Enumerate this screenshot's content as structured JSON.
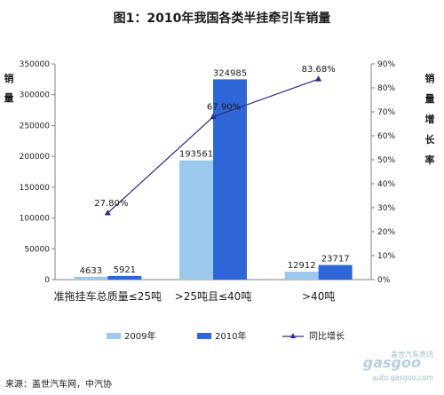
{
  "chart_data": {
    "type": "bar",
    "title": "图1：2010年我国各类半挂牵引车销量",
    "categories": [
      "准拖挂车总质量≤25吨",
      ">25吨且≤40吨",
      ">40吨"
    ],
    "series": [
      {
        "name": "2009年",
        "values": [
          4633,
          193561,
          12912
        ],
        "color": "#9dc9ef"
      },
      {
        "name": "2010年",
        "values": [
          5921,
          324985,
          23717
        ],
        "color": "#2f67d8"
      }
    ],
    "line_series": {
      "name": "同比增长",
      "values": [
        27.8,
        67.9,
        83.68
      ],
      "labels": [
        "27.80%",
        "67.90%",
        "83.68%"
      ],
      "color": "#2a2a88"
    },
    "y_left": {
      "label": "销量",
      "ylim": [
        0,
        350000
      ],
      "ticks": [
        "0",
        "50000",
        "100000",
        "150000",
        "200000",
        "250000",
        "300000",
        "350000"
      ]
    },
    "y_right": {
      "label": "销量增长率",
      "ylim": [
        0,
        90
      ],
      "ticks": [
        "0%",
        "10%",
        "20%",
        "30%",
        "40%",
        "50%",
        "60%",
        "70%",
        "80%",
        "90%"
      ]
    },
    "legend_position": "bottom",
    "grid": false
  },
  "source": "来源：盖世汽车网，中汽协",
  "watermark": {
    "brand": "gasgoo",
    "tagline": "盖世汽车资讯",
    "url": "auto.gasgoo.com"
  }
}
